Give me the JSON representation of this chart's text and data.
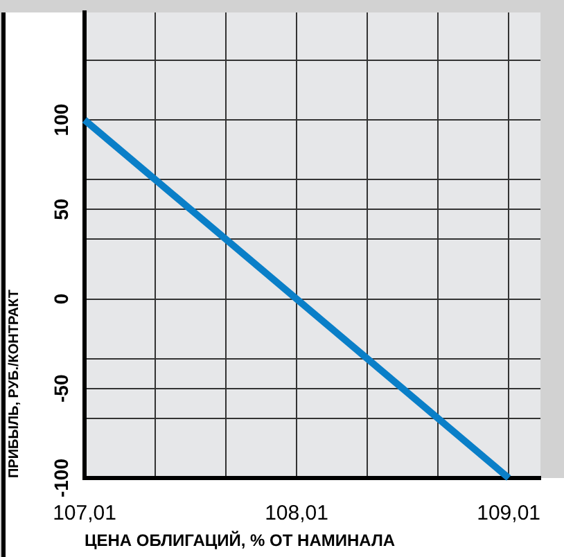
{
  "chart_data": {
    "type": "line",
    "xlabel": "ЦЕНА ОБЛИГАЦИЙ, % ОТ НАМИНАЛА",
    "ylabel": "ПРИБЫЛЬ, РУБ./КОНТРАКТ",
    "x": [
      107.01,
      109.01
    ],
    "series": [
      {
        "color": "#0a7fc8",
        "values": [
          100,
          -100
        ]
      }
    ],
    "xlim": [
      107.01,
      109.16
    ],
    "xticks": [
      {
        "value": 107.01,
        "label": "107,01"
      },
      {
        "value": 107.343,
        "label": null
      },
      {
        "value": 107.677,
        "label": null
      },
      {
        "value": 108.01,
        "label": "108,01"
      },
      {
        "value": 108.343,
        "label": null
      },
      {
        "value": 108.677,
        "label": null
      },
      {
        "value": 109.01,
        "label": "109,01"
      }
    ],
    "ylim": [
      -100,
      160
    ],
    "yticks": [
      -100,
      {
        "value": -66.7,
        "label": null
      },
      -50,
      {
        "value": -33.3,
        "label": null
      },
      0,
      {
        "value": 33.3,
        "label": null
      },
      50,
      {
        "value": 66.7,
        "label": null
      },
      100,
      {
        "value": 133.3,
        "label": null
      }
    ],
    "grid": true,
    "legend": false,
    "marker": "none",
    "line_style": "solid"
  }
}
